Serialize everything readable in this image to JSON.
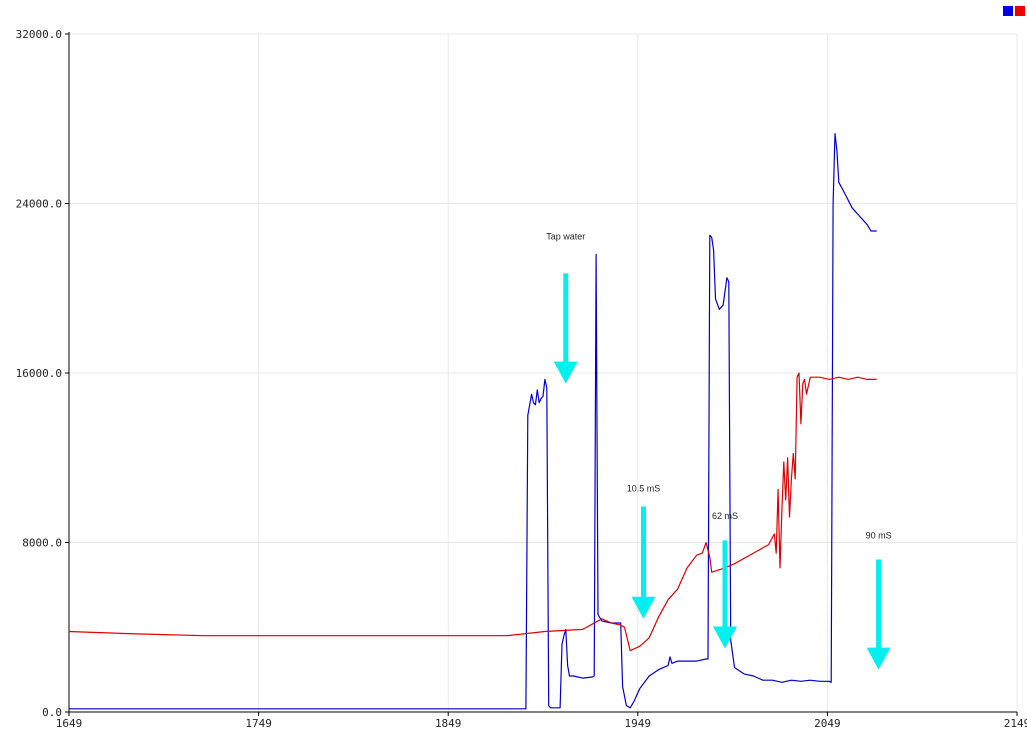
{
  "chart_data": {
    "type": "line",
    "title": "",
    "xlabel": "",
    "ylabel": "",
    "xlim": [
      1649,
      2149
    ],
    "ylim": [
      0,
      32000
    ],
    "x_ticks": [
      "1649",
      "1749",
      "1849",
      "1949",
      "2049",
      "2149"
    ],
    "y_ticks": [
      "0.0",
      "8000.0",
      "16000.0",
      "24000.0",
      "32000.0"
    ],
    "grid": true,
    "legend": "top-right",
    "series": [
      {
        "color": "#0000cc",
        "points": [
          [
            1649,
            150
          ],
          [
            1890,
            150
          ],
          [
            1891,
            14000
          ],
          [
            1892,
            14500
          ],
          [
            1893,
            15000
          ],
          [
            1894,
            14600
          ],
          [
            1895,
            14500
          ],
          [
            1896,
            15200
          ],
          [
            1897,
            14600
          ],
          [
            1898,
            14800
          ],
          [
            1899,
            14900
          ],
          [
            1900,
            15700
          ],
          [
            1901,
            15300
          ],
          [
            1902,
            300
          ],
          [
            1903,
            200
          ],
          [
            1908,
            200
          ],
          [
            1909,
            3200
          ],
          [
            1910,
            3600
          ],
          [
            1911,
            3900
          ],
          [
            1912,
            2200
          ],
          [
            1913,
            1700
          ],
          [
            1915,
            1700
          ],
          [
            1920,
            1600
          ],
          [
            1925,
            1650
          ],
          [
            1926,
            1700
          ],
          [
            1927,
            21600
          ],
          [
            1928,
            4600
          ],
          [
            1930,
            4300
          ],
          [
            1935,
            4200
          ],
          [
            1940,
            4200
          ],
          [
            1941,
            1200
          ],
          [
            1943,
            300
          ],
          [
            1945,
            200
          ],
          [
            1947,
            500
          ],
          [
            1950,
            1100
          ],
          [
            1955,
            1700
          ],
          [
            1960,
            2000
          ],
          [
            1965,
            2200
          ],
          [
            1966,
            2600
          ],
          [
            1967,
            2300
          ],
          [
            1970,
            2400
          ],
          [
            1975,
            2400
          ],
          [
            1980,
            2400
          ],
          [
            1985,
            2500
          ],
          [
            1986,
            2500
          ],
          [
            1987,
            22500
          ],
          [
            1988,
            22400
          ],
          [
            1989,
            21800
          ],
          [
            1990,
            19500
          ],
          [
            1992,
            19000
          ],
          [
            1994,
            19200
          ],
          [
            1996,
            20500
          ],
          [
            1997,
            20300
          ],
          [
            1998,
            3400
          ],
          [
            2000,
            2100
          ],
          [
            2005,
            1800
          ],
          [
            2010,
            1700
          ],
          [
            2015,
            1500
          ],
          [
            2020,
            1500
          ],
          [
            2025,
            1400
          ],
          [
            2030,
            1500
          ],
          [
            2035,
            1450
          ],
          [
            2040,
            1500
          ],
          [
            2045,
            1450
          ],
          [
            2050,
            1450
          ],
          [
            2051,
            1400
          ],
          [
            2052,
            24000
          ],
          [
            2053,
            27300
          ],
          [
            2054,
            26500
          ],
          [
            2055,
            25000
          ],
          [
            2058,
            24500
          ],
          [
            2062,
            23800
          ],
          [
            2065,
            23500
          ],
          [
            2070,
            23000
          ],
          [
            2072,
            22700
          ],
          [
            2075,
            22700
          ]
        ]
      },
      {
        "color": "#dd0000",
        "points": [
          [
            1649,
            3800
          ],
          [
            1680,
            3700
          ],
          [
            1720,
            3600
          ],
          [
            1780,
            3600
          ],
          [
            1840,
            3600
          ],
          [
            1880,
            3600
          ],
          [
            1900,
            3800
          ],
          [
            1920,
            3900
          ],
          [
            1930,
            4400
          ],
          [
            1935,
            4200
          ],
          [
            1940,
            4100
          ],
          [
            1942,
            4000
          ],
          [
            1945,
            2900
          ],
          [
            1950,
            3100
          ],
          [
            1955,
            3500
          ],
          [
            1960,
            4500
          ],
          [
            1965,
            5300
          ],
          [
            1970,
            5800
          ],
          [
            1975,
            6800
          ],
          [
            1980,
            7400
          ],
          [
            1983,
            7500
          ],
          [
            1985,
            8000
          ],
          [
            1987,
            7300
          ],
          [
            1988,
            6600
          ],
          [
            1995,
            6800
          ],
          [
            2000,
            7000
          ],
          [
            2010,
            7500
          ],
          [
            2018,
            7900
          ],
          [
            2021,
            8400
          ],
          [
            2022,
            7500
          ],
          [
            2023,
            10500
          ],
          [
            2024,
            6800
          ],
          [
            2025,
            9500
          ],
          [
            2026,
            11800
          ],
          [
            2027,
            10000
          ],
          [
            2028,
            12000
          ],
          [
            2029,
            9200
          ],
          [
            2030,
            11000
          ],
          [
            2031,
            12200
          ],
          [
            2032,
            11000
          ],
          [
            2033,
            15800
          ],
          [
            2034,
            16000
          ],
          [
            2035,
            13600
          ],
          [
            2036,
            15500
          ],
          [
            2037,
            15700
          ],
          [
            2038,
            15000
          ],
          [
            2040,
            15800
          ],
          [
            2045,
            15800
          ],
          [
            2050,
            15700
          ],
          [
            2055,
            15800
          ],
          [
            2060,
            15700
          ],
          [
            2065,
            15800
          ],
          [
            2070,
            15700
          ],
          [
            2075,
            15700
          ]
        ]
      }
    ],
    "annotations": [
      {
        "text": "Tap water",
        "x": 1911,
        "y": 22300,
        "arrow_from": [
          1911,
          20700
        ],
        "arrow_to": [
          1911,
          15500
        ]
      },
      {
        "text": "10.5 mS",
        "x": 1952,
        "y": 10400,
        "arrow_from": [
          1952,
          9700
        ],
        "arrow_to": [
          1952,
          4400
        ]
      },
      {
        "text": "62 mS",
        "x": 1995,
        "y": 9100,
        "arrow_from": [
          1995,
          8100
        ],
        "arrow_to": [
          1995,
          3000
        ]
      },
      {
        "text": "90 mS",
        "x": 2076,
        "y": 8200,
        "arrow_from": [
          2076,
          7200
        ],
        "arrow_to": [
          2076,
          2000
        ]
      }
    ],
    "arrow_color": "#00f0f0",
    "legend_colors": [
      "#0000ee",
      "#ee0000"
    ]
  }
}
